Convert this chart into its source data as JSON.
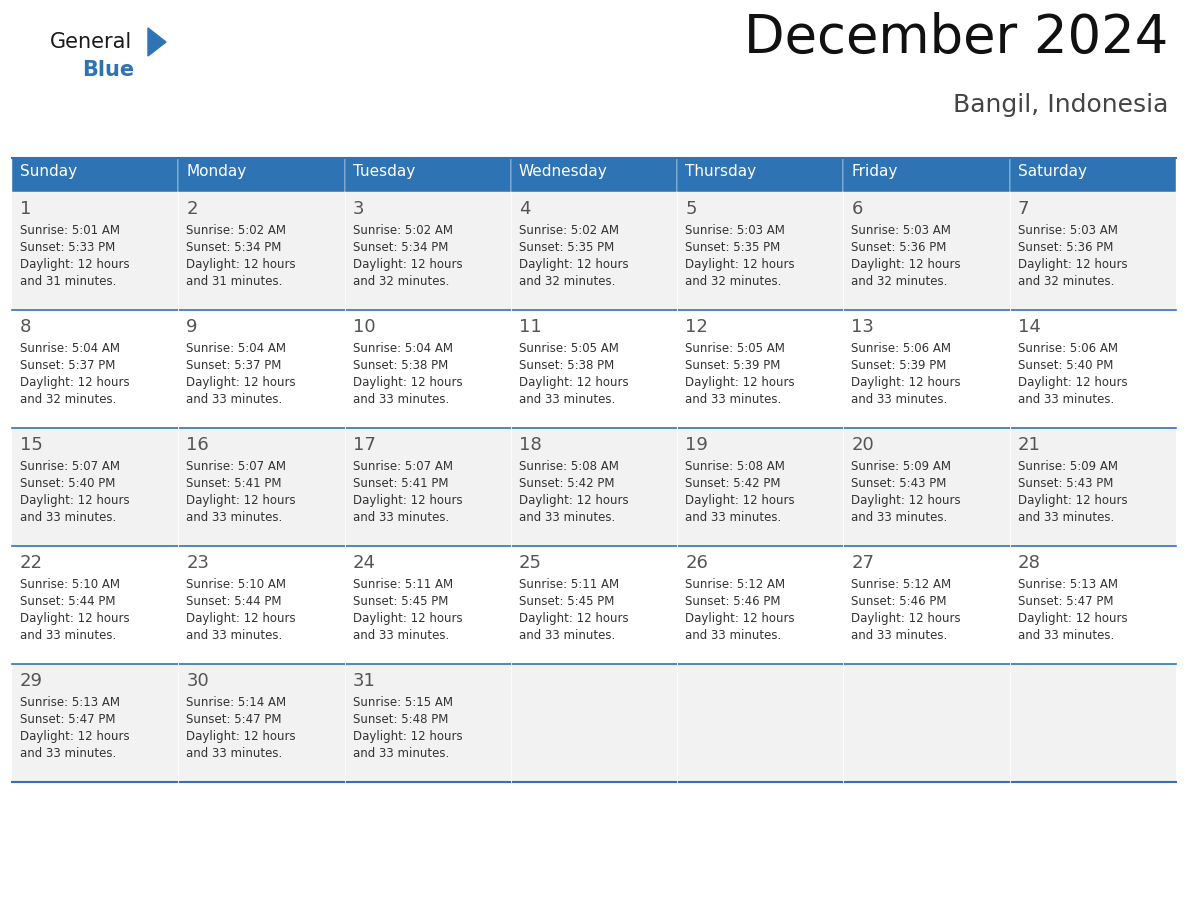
{
  "title": "December 2024",
  "subtitle": "Bangil, Indonesia",
  "header_color": "#2E74B5",
  "header_text_color": "#FFFFFF",
  "header_days": [
    "Sunday",
    "Monday",
    "Tuesday",
    "Wednesday",
    "Thursday",
    "Friday",
    "Saturday"
  ],
  "background_color": "#FFFFFF",
  "cell_bg_odd": "#F2F2F2",
  "cell_bg_even": "#FFFFFF",
  "border_color": "#2E74B5",
  "day_number_color": "#333333",
  "text_color": "#333333",
  "logo_general_color": "#1a1a1a",
  "logo_blue_color": "#2E74B5",
  "fig_width": 11.88,
  "fig_height": 9.18,
  "dpi": 100,
  "weeks": [
    {
      "days": [
        {
          "day": 1,
          "sunrise": "5:01 AM",
          "sunset": "5:33 PM",
          "daylight_hours": 12,
          "daylight_minutes": 31
        },
        {
          "day": 2,
          "sunrise": "5:02 AM",
          "sunset": "5:34 PM",
          "daylight_hours": 12,
          "daylight_minutes": 31
        },
        {
          "day": 3,
          "sunrise": "5:02 AM",
          "sunset": "5:34 PM",
          "daylight_hours": 12,
          "daylight_minutes": 32
        },
        {
          "day": 4,
          "sunrise": "5:02 AM",
          "sunset": "5:35 PM",
          "daylight_hours": 12,
          "daylight_minutes": 32
        },
        {
          "day": 5,
          "sunrise": "5:03 AM",
          "sunset": "5:35 PM",
          "daylight_hours": 12,
          "daylight_minutes": 32
        },
        {
          "day": 6,
          "sunrise": "5:03 AM",
          "sunset": "5:36 PM",
          "daylight_hours": 12,
          "daylight_minutes": 32
        },
        {
          "day": 7,
          "sunrise": "5:03 AM",
          "sunset": "5:36 PM",
          "daylight_hours": 12,
          "daylight_minutes": 32
        }
      ]
    },
    {
      "days": [
        {
          "day": 8,
          "sunrise": "5:04 AM",
          "sunset": "5:37 PM",
          "daylight_hours": 12,
          "daylight_minutes": 32
        },
        {
          "day": 9,
          "sunrise": "5:04 AM",
          "sunset": "5:37 PM",
          "daylight_hours": 12,
          "daylight_minutes": 33
        },
        {
          "day": 10,
          "sunrise": "5:04 AM",
          "sunset": "5:38 PM",
          "daylight_hours": 12,
          "daylight_minutes": 33
        },
        {
          "day": 11,
          "sunrise": "5:05 AM",
          "sunset": "5:38 PM",
          "daylight_hours": 12,
          "daylight_minutes": 33
        },
        {
          "day": 12,
          "sunrise": "5:05 AM",
          "sunset": "5:39 PM",
          "daylight_hours": 12,
          "daylight_minutes": 33
        },
        {
          "day": 13,
          "sunrise": "5:06 AM",
          "sunset": "5:39 PM",
          "daylight_hours": 12,
          "daylight_minutes": 33
        },
        {
          "day": 14,
          "sunrise": "5:06 AM",
          "sunset": "5:40 PM",
          "daylight_hours": 12,
          "daylight_minutes": 33
        }
      ]
    },
    {
      "days": [
        {
          "day": 15,
          "sunrise": "5:07 AM",
          "sunset": "5:40 PM",
          "daylight_hours": 12,
          "daylight_minutes": 33
        },
        {
          "day": 16,
          "sunrise": "5:07 AM",
          "sunset": "5:41 PM",
          "daylight_hours": 12,
          "daylight_minutes": 33
        },
        {
          "day": 17,
          "sunrise": "5:07 AM",
          "sunset": "5:41 PM",
          "daylight_hours": 12,
          "daylight_minutes": 33
        },
        {
          "day": 18,
          "sunrise": "5:08 AM",
          "sunset": "5:42 PM",
          "daylight_hours": 12,
          "daylight_minutes": 33
        },
        {
          "day": 19,
          "sunrise": "5:08 AM",
          "sunset": "5:42 PM",
          "daylight_hours": 12,
          "daylight_minutes": 33
        },
        {
          "day": 20,
          "sunrise": "5:09 AM",
          "sunset": "5:43 PM",
          "daylight_hours": 12,
          "daylight_minutes": 33
        },
        {
          "day": 21,
          "sunrise": "5:09 AM",
          "sunset": "5:43 PM",
          "daylight_hours": 12,
          "daylight_minutes": 33
        }
      ]
    },
    {
      "days": [
        {
          "day": 22,
          "sunrise": "5:10 AM",
          "sunset": "5:44 PM",
          "daylight_hours": 12,
          "daylight_minutes": 33
        },
        {
          "day": 23,
          "sunrise": "5:10 AM",
          "sunset": "5:44 PM",
          "daylight_hours": 12,
          "daylight_minutes": 33
        },
        {
          "day": 24,
          "sunrise": "5:11 AM",
          "sunset": "5:45 PM",
          "daylight_hours": 12,
          "daylight_minutes": 33
        },
        {
          "day": 25,
          "sunrise": "5:11 AM",
          "sunset": "5:45 PM",
          "daylight_hours": 12,
          "daylight_minutes": 33
        },
        {
          "day": 26,
          "sunrise": "5:12 AM",
          "sunset": "5:46 PM",
          "daylight_hours": 12,
          "daylight_minutes": 33
        },
        {
          "day": 27,
          "sunrise": "5:12 AM",
          "sunset": "5:46 PM",
          "daylight_hours": 12,
          "daylight_minutes": 33
        },
        {
          "day": 28,
          "sunrise": "5:13 AM",
          "sunset": "5:47 PM",
          "daylight_hours": 12,
          "daylight_minutes": 33
        }
      ]
    },
    {
      "days": [
        {
          "day": 29,
          "sunrise": "5:13 AM",
          "sunset": "5:47 PM",
          "daylight_hours": 12,
          "daylight_minutes": 33
        },
        {
          "day": 30,
          "sunrise": "5:14 AM",
          "sunset": "5:47 PM",
          "daylight_hours": 12,
          "daylight_minutes": 33
        },
        {
          "day": 31,
          "sunrise": "5:15 AM",
          "sunset": "5:48 PM",
          "daylight_hours": 12,
          "daylight_minutes": 33
        },
        null,
        null,
        null,
        null
      ]
    }
  ]
}
